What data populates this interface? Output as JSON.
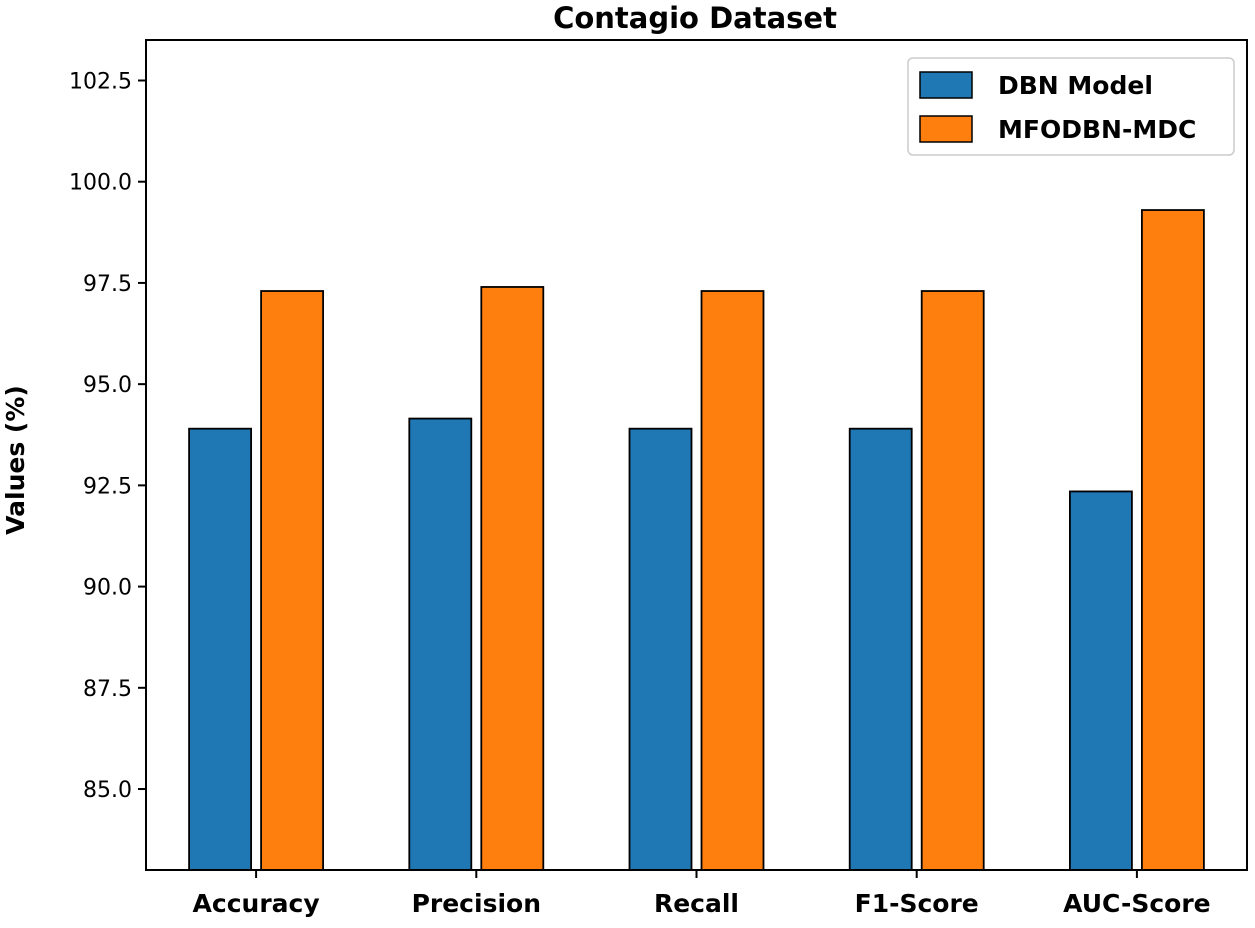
{
  "chart_data": {
    "type": "bar",
    "title": "Contagio Dataset",
    "xlabel": "",
    "ylabel": "Values (%)",
    "categories": [
      "Accuracy",
      "Precision",
      "Recall",
      "F1-Score",
      "AUC-Score"
    ],
    "series": [
      {
        "name": "DBN Model",
        "color": "#1f77b4",
        "values": [
          93.9,
          94.15,
          93.9,
          93.9,
          92.35
        ]
      },
      {
        "name": "MFODBN-MDC",
        "color": "#ff7f0e",
        "values": [
          97.3,
          97.4,
          97.3,
          97.3,
          99.3
        ]
      }
    ],
    "ylim": [
      83.0,
      103.5
    ],
    "yticks": [
      "85.0",
      "87.5",
      "90.0",
      "92.5",
      "95.0",
      "97.5",
      "100.0",
      "102.5"
    ],
    "grid": false,
    "legend_position": "top-right"
  }
}
